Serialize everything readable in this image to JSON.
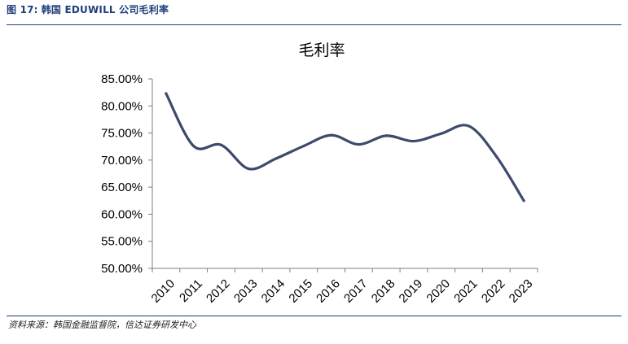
{
  "header": {
    "figure_number": "图 17:",
    "figure_caption": "韩国 EDUWILL 公司毛利率"
  },
  "source_note": "资料来源：韩国金融监督院，信达证券研发中心",
  "colors": {
    "header_text": "#1f3f7a",
    "rule": "#1f3f7a",
    "series_line": "#3d4a6b",
    "axis": "#7f7f7f"
  },
  "chart_data": {
    "type": "line",
    "title": "毛利率",
    "xlabel": "",
    "ylabel": "",
    "categories": [
      "2010",
      "2011",
      "2012",
      "2013",
      "2014",
      "2015",
      "2016",
      "2017",
      "2018",
      "2019",
      "2020",
      "2021",
      "2022",
      "2023"
    ],
    "series": [
      {
        "name": "",
        "values": [
          82.3,
          72.6,
          72.8,
          68.4,
          70.3,
          72.6,
          74.6,
          72.9,
          74.5,
          73.5,
          74.9,
          76.3,
          70.7,
          62.5
        ]
      }
    ],
    "ylim": [
      50,
      85
    ],
    "yticks": [
      50,
      55,
      60,
      65,
      70,
      75,
      80,
      85
    ],
    "ytick_labels": [
      "50.00%",
      "55.00%",
      "60.00%",
      "65.00%",
      "70.00%",
      "75.00%",
      "80.00%",
      "85.00%"
    ],
    "grid": false,
    "legend": "none",
    "smooth": true
  }
}
